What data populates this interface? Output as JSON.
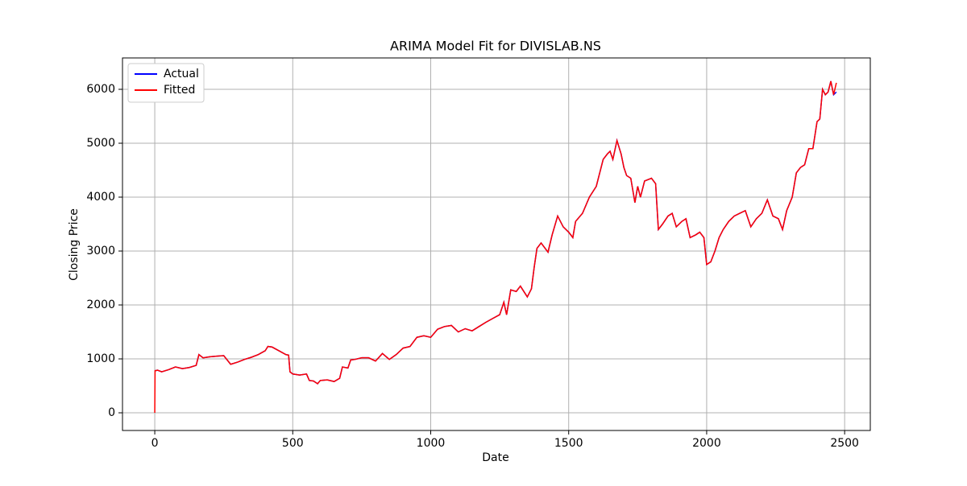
{
  "chart_data": {
    "type": "line",
    "title": "ARIMA Model Fit for DIVISLAB.NS",
    "x_label": "Date",
    "y_label": "Closing Price",
    "x": [
      0,
      1,
      10,
      25,
      50,
      75,
      100,
      125,
      150,
      160,
      175,
      200,
      225,
      250,
      275,
      300,
      325,
      350,
      375,
      400,
      410,
      425,
      450,
      475,
      485,
      490,
      500,
      525,
      550,
      560,
      575,
      590,
      600,
      625,
      650,
      670,
      680,
      700,
      710,
      725,
      750,
      775,
      800,
      825,
      850,
      875,
      900,
      925,
      950,
      975,
      1000,
      1025,
      1050,
      1075,
      1100,
      1125,
      1150,
      1175,
      1200,
      1225,
      1250,
      1265,
      1275,
      1290,
      1310,
      1325,
      1350,
      1365,
      1375,
      1385,
      1400,
      1425,
      1440,
      1460,
      1480,
      1500,
      1515,
      1525,
      1550,
      1575,
      1600,
      1625,
      1640,
      1650,
      1660,
      1675,
      1690,
      1700,
      1710,
      1725,
      1740,
      1750,
      1760,
      1775,
      1800,
      1815,
      1825,
      1840,
      1860,
      1875,
      1890,
      1910,
      1925,
      1940,
      1960,
      1975,
      1990,
      2000,
      2015,
      2030,
      2045,
      2060,
      2080,
      2100,
      2120,
      2140,
      2160,
      2180,
      2200,
      2220,
      2240,
      2260,
      2275,
      2290,
      2310,
      2325,
      2340,
      2355,
      2370,
      2385,
      2400,
      2410,
      2420,
      2430,
      2440,
      2450,
      2460,
      2470
    ],
    "series": [
      {
        "name": "Actual",
        "color": "#0000ff",
        "values": [
          780,
          780,
          790,
          760,
          800,
          850,
          820,
          840,
          880,
          1080,
          1020,
          1040,
          1050,
          1060,
          900,
          940,
          990,
          1030,
          1080,
          1150,
          1230,
          1220,
          1150,
          1080,
          1070,
          760,
          720,
          700,
          720,
          600,
          590,
          540,
          600,
          610,
          580,
          640,
          850,
          830,
          980,
          990,
          1020,
          1020,
          960,
          1100,
          990,
          1080,
          1200,
          1230,
          1400,
          1430,
          1400,
          1550,
          1600,
          1620,
          1500,
          1560,
          1520,
          1600,
          1680,
          1750,
          1820,
          2050,
          1820,
          2280,
          2250,
          2350,
          2150,
          2300,
          2700,
          3050,
          3150,
          2980,
          3300,
          3650,
          3450,
          3350,
          3250,
          3550,
          3700,
          4000,
          4200,
          4700,
          4800,
          4850,
          4700,
          5050,
          4800,
          4550,
          4400,
          4350,
          3900,
          4200,
          4000,
          4300,
          4350,
          4250,
          3400,
          3500,
          3650,
          3700,
          3450,
          3550,
          3600,
          3250,
          3300,
          3350,
          3250,
          2750,
          2800,
          3000,
          3250,
          3400,
          3550,
          3650,
          3700,
          3750,
          3450,
          3600,
          3700,
          3950,
          3650,
          3600,
          3400,
          3750,
          4000,
          4450,
          4550,
          4600,
          4900,
          4900,
          5400,
          5450,
          6000,
          5900,
          5950,
          6150,
          5900,
          5950
        ]
      },
      {
        "name": "Fitted",
        "color": "#ff0000",
        "values": [
          0,
          780,
          790,
          760,
          800,
          850,
          820,
          840,
          880,
          1080,
          1020,
          1040,
          1050,
          1060,
          900,
          940,
          990,
          1030,
          1080,
          1150,
          1230,
          1220,
          1150,
          1080,
          1070,
          760,
          720,
          700,
          720,
          600,
          590,
          540,
          600,
          610,
          580,
          640,
          850,
          830,
          980,
          990,
          1020,
          1020,
          960,
          1100,
          990,
          1080,
          1200,
          1230,
          1400,
          1430,
          1400,
          1550,
          1600,
          1620,
          1500,
          1560,
          1520,
          1600,
          1680,
          1750,
          1820,
          2050,
          1820,
          2280,
          2250,
          2350,
          2150,
          2300,
          2700,
          3050,
          3150,
          2980,
          3300,
          3650,
          3450,
          3350,
          3250,
          3550,
          3700,
          4000,
          4200,
          4700,
          4800,
          4850,
          4700,
          5050,
          4800,
          4550,
          4400,
          4350,
          3900,
          4200,
          4000,
          4300,
          4350,
          4250,
          3400,
          3500,
          3650,
          3700,
          3450,
          3550,
          3600,
          3250,
          3300,
          3350,
          3250,
          2750,
          2800,
          3000,
          3250,
          3400,
          3550,
          3650,
          3700,
          3750,
          3450,
          3600,
          3700,
          3950,
          3650,
          3600,
          3400,
          3750,
          4000,
          4450,
          4550,
          4600,
          4900,
          4900,
          5400,
          5450,
          6000,
          5900,
          5950,
          6150,
          5900,
          6120
        ]
      }
    ],
    "xlim": [
      -117,
      2593
    ],
    "ylim": [
      -328,
      6582
    ],
    "xticks": [
      0,
      500,
      1000,
      1500,
      2000,
      2500
    ],
    "yticks": [
      0,
      1000,
      2000,
      3000,
      4000,
      5000,
      6000
    ],
    "grid": true,
    "legend": "upper-left"
  }
}
